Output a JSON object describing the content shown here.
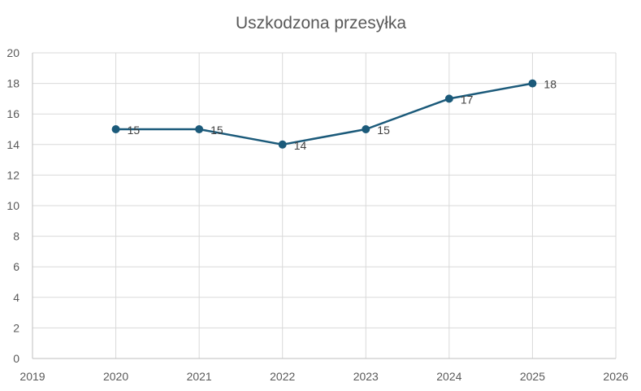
{
  "chart_data": {
    "type": "line",
    "title": "Uszkodzona przesyłka",
    "xlabel": "",
    "ylabel": "",
    "xlim": [
      2019,
      2026
    ],
    "ylim": [
      0,
      20
    ],
    "x_ticks": [
      "2019",
      "2020",
      "2021",
      "2022",
      "2023",
      "2024",
      "2025",
      "2026"
    ],
    "y_ticks": [
      "0",
      "2",
      "4",
      "6",
      "8",
      "10",
      "12",
      "14",
      "16",
      "18",
      "20"
    ],
    "grid": true,
    "legend": "none",
    "series": [
      {
        "color": "#1b5a7a",
        "x": [
          2020,
          2021,
          2022,
          2023,
          2024,
          2025
        ],
        "y": [
          15,
          15,
          14,
          15,
          17,
          18
        ],
        "labels": [
          "15",
          "15",
          "14",
          "15",
          "17",
          "18"
        ]
      }
    ]
  }
}
